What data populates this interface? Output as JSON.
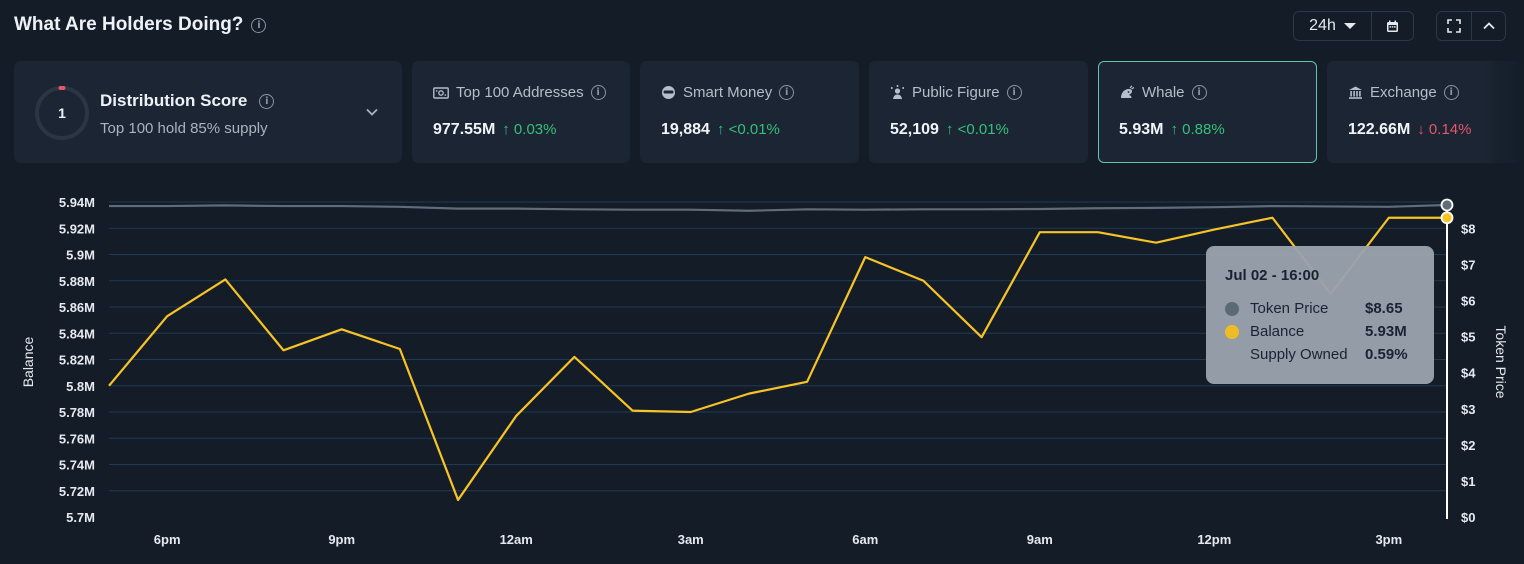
{
  "header": {
    "title": "What Are Holders Doing?",
    "range": "24h"
  },
  "distribution": {
    "score": "1",
    "title": "Distribution Score",
    "subtitle": "Top 100 hold 85% supply"
  },
  "metrics": [
    {
      "label": "Top 100 Addresses",
      "value": "977.55M",
      "change": "↑ 0.03%",
      "dir": "up",
      "icon": "cash-icon"
    },
    {
      "label": "Smart Money",
      "value": "19,884",
      "change": "↑ <0.01%",
      "dir": "up",
      "icon": "smart-money-icon"
    },
    {
      "label": "Public Figure",
      "value": "52,109",
      "change": "↑ <0.01%",
      "dir": "up",
      "icon": "public-figure-icon"
    },
    {
      "label": "Whale",
      "value": "5.93M",
      "change": "↑ 0.88%",
      "dir": "up",
      "icon": "whale-icon"
    },
    {
      "label": "Exchange",
      "value": "122.66M",
      "change": "↓ 0.14%",
      "dir": "down",
      "icon": "bank-icon"
    }
  ],
  "tooltip": {
    "date": "Jul 02 - 16:00",
    "rows": [
      {
        "name": "Token Price",
        "value": "$8.65",
        "color": "#5f6d7b"
      },
      {
        "name": "Balance",
        "value": "5.93M",
        "color": "#f7c325"
      },
      {
        "name": "Supply Owned",
        "value": "0.59%",
        "color": ""
      }
    ]
  },
  "colors": {
    "balance": "#f7c325",
    "price": "#5f6d7b",
    "grid": "#1e3a57",
    "up": "#35c079",
    "down": "#e4576a",
    "active_border": "#5fc6ae"
  },
  "chart_data": {
    "type": "line",
    "xlabel": "",
    "ylabel": "Balance",
    "y2label": "Token Price",
    "x_ticks": [
      "6pm",
      "9pm",
      "12am",
      "3am",
      "6am",
      "9am",
      "12pm",
      "3pm"
    ],
    "y_ticks": [
      "5.7M",
      "5.72M",
      "5.74M",
      "5.76M",
      "5.78M",
      "5.8M",
      "5.82M",
      "5.84M",
      "5.86M",
      "5.88M",
      "5.9M",
      "5.92M",
      "5.94M"
    ],
    "y2_ticks": [
      "$0",
      "$1",
      "$2",
      "$3",
      "$4",
      "$5",
      "$6",
      "$7",
      "$8"
    ],
    "ylim": [
      5.7,
      5.94
    ],
    "y2lim": [
      0,
      8.65
    ],
    "x_hours": [
      0,
      1,
      2,
      3,
      4,
      5,
      6,
      7,
      8,
      9,
      10,
      11,
      12,
      13,
      14,
      15,
      16,
      17,
      18,
      19,
      20,
      21,
      22,
      23
    ],
    "series": [
      {
        "name": "Balance",
        "axis": "left",
        "values": [
          5.8,
          5.853,
          5.881,
          5.827,
          5.843,
          5.828,
          5.713,
          5.777,
          5.822,
          5.781,
          5.78,
          5.794,
          5.803,
          5.898,
          5.88,
          5.837,
          5.917,
          5.917,
          5.909,
          5.919,
          5.928,
          5.87,
          5.928,
          5.928
        ]
      },
      {
        "name": "Token Price",
        "axis": "right",
        "values": [
          8.62,
          8.62,
          8.64,
          8.62,
          8.62,
          8.6,
          8.55,
          8.55,
          8.53,
          8.52,
          8.52,
          8.49,
          8.53,
          8.52,
          8.53,
          8.53,
          8.54,
          8.56,
          8.57,
          8.59,
          8.62,
          8.61,
          8.6,
          8.65
        ]
      }
    ]
  }
}
